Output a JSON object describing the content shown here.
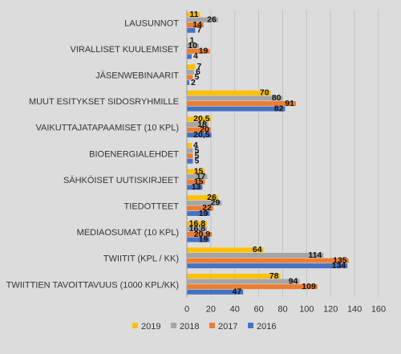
{
  "chart_data": {
    "type": "bar",
    "orientation": "horizontal",
    "categories": [
      "LAUSUNNOT",
      "VIRALLISET KUULEMISET",
      "JÄSENWEBINAARIT",
      "MUUT ESITYKSET SIDOSRYHMILLE",
      "VAIKUTTAJATAPAAMISET (10 KPL)",
      "BIOENERGIALEHDET",
      "SÄHKÖISET UUTISKIRJEET",
      "TIEDOTTEET",
      "MEDIAOSUMAT (10 KPL)",
      "TWIITIT (KPL / KK)",
      "TWIITTIEN TAVOITTAVUUS (1000 KPL/KK)"
    ],
    "series": [
      {
        "name": "2019",
        "color": "#ffc000",
        "values": [
          11,
          1,
          7,
          70,
          20.5,
          4,
          15,
          26,
          16.8,
          64,
          78
        ],
        "labels": [
          "11",
          "1",
          "7",
          "70",
          "20,5",
          "4",
          "15",
          "26",
          "16,8",
          "64",
          "78"
        ]
      },
      {
        "name": "2018",
        "color": "#a5a5a5",
        "values": [
          26,
          10,
          6,
          80,
          18,
          5,
          17,
          29,
          16.8,
          114,
          94
        ],
        "labels": [
          "26",
          "10",
          "6",
          "80",
          "18",
          "5",
          "17",
          "29",
          "16,8",
          "114",
          "94"
        ]
      },
      {
        "name": "2017",
        "color": "#ed7d31",
        "values": [
          14,
          19,
          5,
          91,
          20,
          5,
          15,
          22,
          20.9,
          135,
          109
        ],
        "labels": [
          "14",
          "19",
          "5",
          "91",
          "20",
          "5",
          "15",
          "22",
          "20,9",
          "135",
          "109"
        ]
      },
      {
        "name": "2016",
        "color": "#4472c4",
        "values": [
          7,
          4,
          2,
          82,
          20.5,
          5,
          13,
          19,
          19,
          134,
          47
        ],
        "labels": [
          "7",
          "4",
          "2",
          "82",
          "20,5",
          "5",
          "13",
          "19",
          "19",
          "134",
          "47"
        ]
      }
    ],
    "legend_order": [
      "2019",
      "2018",
      "2017",
      "2016"
    ],
    "xlim": [
      0,
      160
    ],
    "xticks": [
      0,
      20,
      40,
      60,
      80,
      100,
      120,
      140,
      160
    ],
    "grid": true,
    "legend_position": "bottom"
  }
}
